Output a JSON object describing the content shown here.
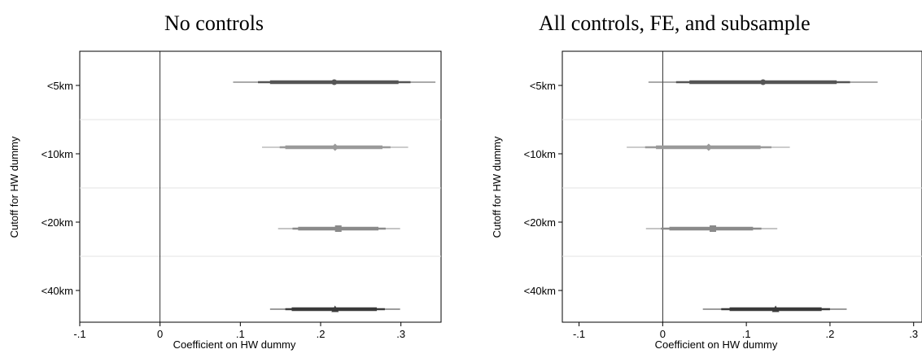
{
  "chart_data": [
    {
      "type": "scatter",
      "title": "No controls",
      "xlabel": "Coefficient on HW dummy",
      "ylabel": "Cutoff for HW dummy",
      "xlim": [
        -0.1,
        0.35
      ],
      "x_ticks": [
        "-.1",
        "0",
        ".1",
        ".2",
        ".3"
      ],
      "x_tick_values": [
        -0.1,
        0,
        0.1,
        0.2,
        0.3
      ],
      "categories": [
        "<5km",
        "<10km",
        "<20km",
        "<40km"
      ],
      "reference_line_x": 0,
      "grid": "horizontal",
      "series": [
        {
          "category": "<5km",
          "marker": "circle",
          "color": "#555555",
          "estimate": 0.217,
          "ci90": [
            0.137,
            0.297
          ],
          "ci95": [
            0.122,
            0.312
          ],
          "ci99": [
            0.091,
            0.343
          ]
        },
        {
          "category": "<10km",
          "marker": "diamond",
          "color": "#9a9a9a",
          "estimate": 0.218,
          "ci90": [
            0.156,
            0.277
          ],
          "ci95": [
            0.149,
            0.287
          ],
          "ci99": [
            0.127,
            0.309
          ]
        },
        {
          "category": "<20km",
          "marker": "square",
          "color": "#8a8a8a",
          "estimate": 0.222,
          "ci90": [
            0.172,
            0.272
          ],
          "ci95": [
            0.165,
            0.281
          ],
          "ci99": [
            0.147,
            0.299
          ]
        },
        {
          "category": "<40km",
          "marker": "triangle",
          "color": "#3a3a3a",
          "estimate": 0.218,
          "ci90": [
            0.164,
            0.27
          ],
          "ci95": [
            0.156,
            0.28
          ],
          "ci99": [
            0.137,
            0.299
          ]
        }
      ]
    },
    {
      "type": "scatter",
      "title": "All controls, FE, and subsample",
      "xlabel": "Coefficient on HW dummy",
      "ylabel": "Cutoff for HW dummy",
      "xlim": [
        -0.12,
        0.31
      ],
      "x_ticks": [
        "-.1",
        "0",
        ".1",
        ".2",
        ".3"
      ],
      "x_tick_values": [
        -0.1,
        0,
        0.1,
        0.2,
        0.3
      ],
      "categories": [
        "<5km",
        "<10km",
        "<20km",
        "<40km"
      ],
      "reference_line_x": 0,
      "grid": "horizontal",
      "series": [
        {
          "category": "<5km",
          "marker": "circle",
          "color": "#555555",
          "estimate": 0.12,
          "ci90": [
            0.032,
            0.208
          ],
          "ci95": [
            0.016,
            0.224
          ],
          "ci99": [
            -0.017,
            0.257
          ]
        },
        {
          "category": "<10km",
          "marker": "diamond",
          "color": "#9a9a9a",
          "estimate": 0.055,
          "ci90": [
            -0.008,
            0.117
          ],
          "ci95": [
            -0.021,
            0.13
          ],
          "ci99": [
            -0.043,
            0.152
          ]
        },
        {
          "category": "<20km",
          "marker": "square",
          "color": "#8a8a8a",
          "estimate": 0.06,
          "ci90": [
            0.008,
            0.108
          ],
          "ci95": [
            -0.002,
            0.118
          ],
          "ci99": [
            -0.02,
            0.137
          ]
        },
        {
          "category": "<40km",
          "marker": "triangle",
          "color": "#3a3a3a",
          "estimate": 0.135,
          "ci90": [
            0.08,
            0.19
          ],
          "ci95": [
            0.07,
            0.2
          ],
          "ci99": [
            0.048,
            0.22
          ]
        }
      ]
    }
  ]
}
